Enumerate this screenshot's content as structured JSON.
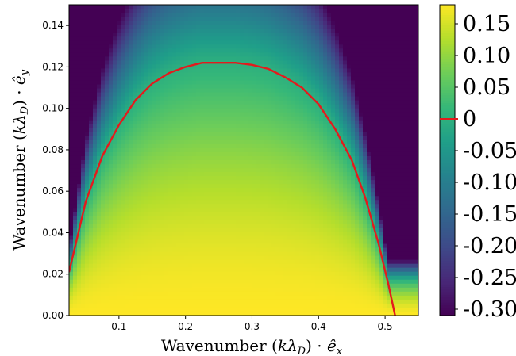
{
  "chart_data": {
    "type": "heatmap",
    "title": "",
    "xlabel": {
      "prefix": "Wavenumber (",
      "k": "k",
      "lambda": "λ",
      "sub": "D",
      "mid": ") · ",
      "unit": "ê",
      "unit_sub": "x"
    },
    "ylabel": {
      "prefix": "Wavenumber (",
      "k": "k",
      "lambda": "λ",
      "sub": "D",
      "mid": ") · ",
      "unit": "ê",
      "unit_sub": "y"
    },
    "xlim": [
      0.025,
      0.55
    ],
    "ylim": [
      0.0,
      0.15
    ],
    "x_ticks": [
      "0.1",
      "0.2",
      "0.3",
      "0.4",
      "0.5"
    ],
    "x_tick_values": [
      0.1,
      0.2,
      0.3,
      0.4,
      0.5
    ],
    "y_ticks": [
      "0.00",
      "0.02",
      "0.04",
      "0.06",
      "0.08",
      "0.10",
      "0.12",
      "0.14"
    ],
    "y_tick_values": [
      0.0,
      0.02,
      0.04,
      0.06,
      0.08,
      0.1,
      0.12,
      0.14
    ],
    "colorbar": {
      "range": [
        -0.31,
        0.18
      ],
      "tick_values": [
        0.15,
        0.1,
        0.05,
        0.0,
        -0.05,
        -0.1,
        -0.15,
        -0.2,
        -0.25,
        -0.3
      ],
      "tick_labels": [
        "0.15",
        "0.10",
        "0.05",
        "0",
        "-0.05",
        "-0.10",
        "-0.15",
        "-0.20",
        "-0.25",
        "-0.30"
      ],
      "colormap": "viridis",
      "zero_marker_color": "#e41a1c"
    },
    "field": {
      "peak_x": 0.25,
      "peak_y": 0.0,
      "peak_value": 0.18,
      "min_value": -0.31
    },
    "zero_contour": {
      "color": "#e41a1c",
      "points": [
        [
          0.025,
          0.021
        ],
        [
          0.05,
          0.055
        ],
        [
          0.075,
          0.077
        ],
        [
          0.1,
          0.092
        ],
        [
          0.125,
          0.104
        ],
        [
          0.15,
          0.112
        ],
        [
          0.175,
          0.117
        ],
        [
          0.2,
          0.12
        ],
        [
          0.225,
          0.122
        ],
        [
          0.25,
          0.122
        ],
        [
          0.275,
          0.122
        ],
        [
          0.3,
          0.121
        ],
        [
          0.325,
          0.119
        ],
        [
          0.35,
          0.115
        ],
        [
          0.375,
          0.11
        ],
        [
          0.4,
          0.102
        ],
        [
          0.425,
          0.09
        ],
        [
          0.45,
          0.075
        ],
        [
          0.47,
          0.057
        ],
        [
          0.49,
          0.035
        ],
        [
          0.505,
          0.015
        ],
        [
          0.515,
          0.0
        ]
      ]
    }
  }
}
